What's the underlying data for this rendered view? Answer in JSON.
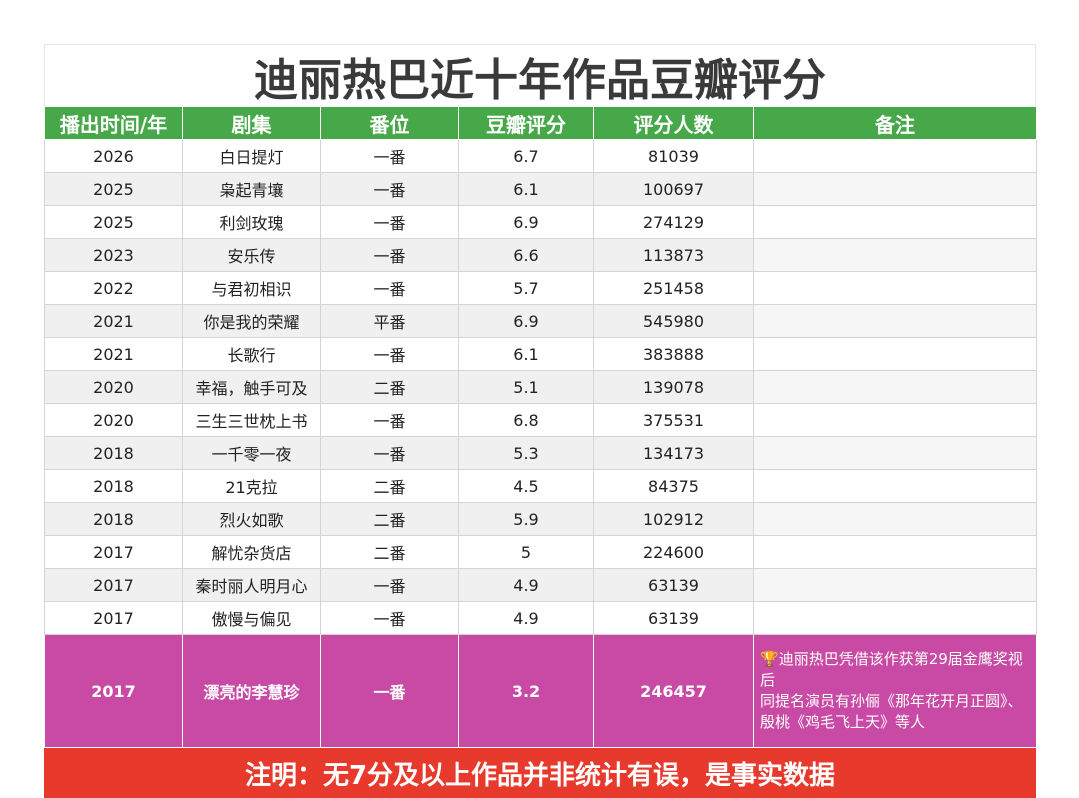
{
  "title": "迪丽热巴近十年作品豆瓣评分",
  "headers": [
    "播出时间/年",
    "剧集",
    "番位",
    "豆瓣评分",
    "评分人数",
    "备注"
  ],
  "rows": [
    {
      "year": "2026",
      "drama": "白日提灯",
      "billing": "一番",
      "score": "6.7",
      "votes": "81039",
      "note": ""
    },
    {
      "year": "2025",
      "drama": "枭起青壤",
      "billing": "一番",
      "score": "6.1",
      "votes": "100697",
      "note": ""
    },
    {
      "year": "2025",
      "drama": "利剑玫瑰",
      "billing": "一番",
      "score": "6.9",
      "votes": "274129",
      "note": ""
    },
    {
      "year": "2023",
      "drama": "安乐传",
      "billing": "一番",
      "score": "6.6",
      "votes": "113873",
      "note": ""
    },
    {
      "year": "2022",
      "drama": "与君初相识",
      "billing": "一番",
      "score": "5.7",
      "votes": "251458",
      "note": ""
    },
    {
      "year": "2021",
      "drama": "你是我的荣耀",
      "billing": "平番",
      "score": "6.9",
      "votes": "545980",
      "note": ""
    },
    {
      "year": "2021",
      "drama": "长歌行",
      "billing": "一番",
      "score": "6.1",
      "votes": "383888",
      "note": ""
    },
    {
      "year": "2020",
      "drama": "幸福，触手可及",
      "billing": "二番",
      "score": "5.1",
      "votes": "139078",
      "note": ""
    },
    {
      "year": "2020",
      "drama": "三生三世枕上书",
      "billing": "一番",
      "score": "6.8",
      "votes": "375531",
      "note": ""
    },
    {
      "year": "2018",
      "drama": "一千零一夜",
      "billing": "一番",
      "score": "5.3",
      "votes": "134173",
      "note": ""
    },
    {
      "year": "2018",
      "drama": "21克拉",
      "billing": "二番",
      "score": "4.5",
      "votes": "84375",
      "note": ""
    },
    {
      "year": "2018",
      "drama": "烈火如歌",
      "billing": "二番",
      "score": "5.9",
      "votes": "102912",
      "note": ""
    },
    {
      "year": "2017",
      "drama": "解忧杂货店",
      "billing": "二番",
      "score": "5",
      "votes": "224600",
      "note": ""
    },
    {
      "year": "2017",
      "drama": "秦时丽人明月心",
      "billing": "一番",
      "score": "4.9",
      "votes": "63139",
      "note": ""
    },
    {
      "year": "2017",
      "drama": "傲慢与偏见",
      "billing": "一番",
      "score": "4.9",
      "votes": "63139",
      "note": ""
    }
  ],
  "highlight_row": {
    "year": "2017",
    "drama": "漂亮的李慧珍",
    "billing": "一番",
    "score": "3.2",
    "votes": "246457",
    "note_icon": "trophy-icon",
    "note": "迪丽热巴凭借该作获第29届金鹰奖视后\n同提名演员有孙俪《那年花开月正圆》、殷桃《鸡毛飞上天》等人"
  },
  "footer": "注明：无7分及以上作品并非统计有误，是事实数据",
  "colors": {
    "header_green": "#47a84a",
    "highlight_magenta": "#c94aa5",
    "footer_red": "#e8392d"
  }
}
